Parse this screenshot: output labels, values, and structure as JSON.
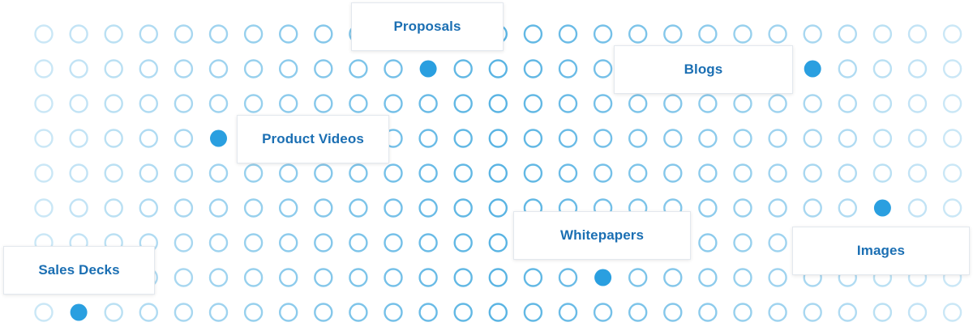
{
  "colors": {
    "ring": "#5ab4e3",
    "filled": "#2a9fe0",
    "label_text": "#1b6fb3",
    "card_border": "#e3e8ee"
  },
  "labels": {
    "proposals": "Proposals",
    "blogs": "Blogs",
    "product_videos": "Product Videos",
    "whitepapers": "Whitepapers",
    "images": "Images",
    "sales_decks": "Sales Decks"
  }
}
